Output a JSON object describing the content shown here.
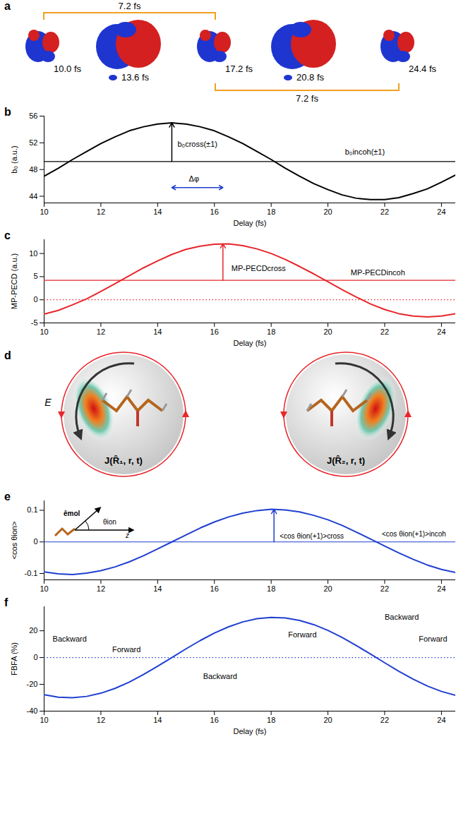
{
  "figure": {
    "a": {
      "panel_label": "a",
      "snapshots": [
        "10.0 fs",
        "13.6 fs",
        "17.2 fs",
        "20.8 fs",
        "24.4 fs"
      ],
      "brackets": [
        "7.2 fs",
        "7.2 fs"
      ]
    },
    "d": {
      "panel_label": "d",
      "field_label": "E",
      "current_labels": [
        "J(R̂₁, r, t)",
        "J(R̂₂, r, t)"
      ]
    }
  },
  "chart_data": [
    {
      "type": "line",
      "panel_label": "b",
      "x_label": "Delay (fs)",
      "y_label": "b₀ (a.u.)",
      "x": [
        10,
        10.5,
        11,
        11.5,
        12,
        12.5,
        13,
        13.5,
        14,
        14.5,
        15,
        15.5,
        16,
        16.5,
        17,
        17.5,
        18,
        18.5,
        19,
        19.5,
        20,
        20.5,
        21,
        21.5,
        22,
        22.5,
        23,
        23.5,
        24,
        24.5
      ],
      "series": [
        {
          "color": "#000000",
          "values": [
            47.0,
            48.2,
            49.5,
            50.7,
            51.9,
            52.9,
            53.8,
            54.4,
            54.8,
            55.0,
            54.8,
            54.4,
            53.8,
            52.9,
            51.9,
            50.7,
            49.5,
            48.2,
            47.0,
            45.9,
            45.0,
            44.2,
            43.7,
            43.5,
            43.5,
            43.8,
            44.4,
            45.1,
            46.1,
            47.2
          ]
        }
      ],
      "reference_lines": [
        {
          "y": 49.2,
          "color": "#000000",
          "line_style": "solid"
        }
      ],
      "arrows": [
        {
          "x1": 14.5,
          "y1": 49.2,
          "x2": 14.5,
          "y2": 55.0,
          "color": "#000000"
        }
      ],
      "double_arrows": [
        {
          "x1": 14.5,
          "x2": 16.3,
          "y": 45.3,
          "color": "#1f3fd0"
        }
      ],
      "annotations": [
        {
          "text": "b₀cross(±1)",
          "x": 14.7,
          "y": 51.8
        },
        {
          "text": "b₀incoh(±1)",
          "x": 20.6,
          "y": 50.6
        },
        {
          "text": "Δφ",
          "x": 15.1,
          "y": 46.6
        }
      ],
      "xlim": [
        10,
        24.5
      ],
      "xticks": [
        10,
        12,
        14,
        16,
        18,
        20,
        22,
        24
      ],
      "ylim": [
        43,
        56
      ],
      "yticks": [
        44,
        48,
        52,
        56
      ]
    },
    {
      "type": "line",
      "panel_label": "c",
      "x_label": "Delay (fs)",
      "y_label": "MP-PECD (a.u.)",
      "x": [
        10,
        10.5,
        11,
        11.5,
        12,
        12.5,
        13,
        13.5,
        14,
        14.5,
        15,
        15.5,
        16,
        16.5,
        17,
        17.5,
        18,
        18.5,
        19,
        19.5,
        20,
        20.5,
        21,
        21.5,
        22,
        22.5,
        23,
        23.5,
        24,
        24.5
      ],
      "series": [
        {
          "color": "#e8262b",
          "values": [
            -3.1,
            -2.3,
            -1.1,
            0.2,
            1.8,
            3.5,
            5.2,
            6.9,
            8.4,
            9.8,
            10.9,
            11.6,
            12.0,
            12.1,
            11.7,
            11.0,
            10.0,
            8.7,
            7.2,
            5.6,
            3.9,
            2.2,
            0.6,
            -0.9,
            -2.1,
            -3.0,
            -3.5,
            -3.7,
            -3.5,
            -3.0
          ]
        }
      ],
      "reference_lines": [
        {
          "y": 0,
          "color": "#e8262b",
          "line_style": "dotted"
        },
        {
          "y": 4.2,
          "color": "#e8262b",
          "line_style": "solid"
        }
      ],
      "arrows": [
        {
          "x1": 16.3,
          "y1": 4.2,
          "x2": 16.3,
          "y2": 12.1,
          "color": "#e8262b"
        }
      ],
      "annotations": [
        {
          "text": "MP-PECDcross",
          "x": 16.6,
          "y": 6.8
        },
        {
          "text": "MP-PECDincoh",
          "x": 20.8,
          "y": 5.8
        }
      ],
      "xlim": [
        10,
        24.5
      ],
      "xticks": [
        10,
        12,
        14,
        16,
        18,
        20,
        22,
        24
      ],
      "ylim": [
        -5,
        13
      ],
      "yticks": [
        -5,
        0,
        5,
        10
      ]
    },
    {
      "type": "line",
      "panel_label": "e",
      "y_label": "<cos θion>",
      "x": [
        10,
        10.5,
        11,
        11.5,
        12,
        12.5,
        13,
        13.5,
        14,
        14.5,
        15,
        15.5,
        16,
        16.5,
        17,
        17.5,
        18,
        18.5,
        19,
        19.5,
        20,
        20.5,
        21,
        21.5,
        22,
        22.5,
        23,
        23.5,
        24,
        24.5
      ],
      "series": [
        {
          "color": "#1f3fd0",
          "values": [
            -0.095,
            -0.101,
            -0.103,
            -0.099,
            -0.091,
            -0.079,
            -0.063,
            -0.044,
            -0.022,
            0,
            0.022,
            0.044,
            0.063,
            0.079,
            0.091,
            0.099,
            0.103,
            0.101,
            0.095,
            0.084,
            0.07,
            0.052,
            0.031,
            0.009,
            -0.013,
            -0.035,
            -0.055,
            -0.073,
            -0.087,
            -0.097
          ]
        }
      ],
      "reference_lines": [
        {
          "y": 0,
          "color": "#1f3fd0",
          "line_style": "solid"
        }
      ],
      "arrows": [
        {
          "x1": 18.1,
          "y1": 0,
          "x2": 18.1,
          "y2": 0.103,
          "color": "#1f3fd0"
        }
      ],
      "annotations": [
        {
          "text": "<cos θion(+1)>cross",
          "x": 18.3,
          "y": 0.018
        },
        {
          "text": "<cos θion(+1)>incoh",
          "x": 21.9,
          "y": 0.025
        }
      ],
      "inset_labels": [
        "êmol",
        "θion",
        "z"
      ],
      "xlim": [
        10,
        24.5
      ],
      "xticks": [
        10,
        12,
        14,
        16,
        18,
        20,
        22,
        24
      ],
      "ylim": [
        -0.12,
        0.13
      ],
      "yticks": [
        -0.1,
        0,
        0.1
      ]
    },
    {
      "type": "line",
      "panel_label": "f",
      "x_label": "Delay (fs)",
      "y_label": "FBFA (%)",
      "x": [
        10,
        10.5,
        11,
        11.5,
        12,
        12.5,
        13,
        13.5,
        14,
        14.5,
        15,
        15.5,
        16,
        16.5,
        17,
        17.5,
        18,
        18.5,
        19,
        19.5,
        20,
        20.5,
        21,
        21.5,
        22,
        22.5,
        23,
        23.5,
        24,
        24.5
      ],
      "series": [
        {
          "color": "#1f3fd0",
          "values": [
            -27.7,
            -29.6,
            -30.0,
            -29.0,
            -26.6,
            -23.0,
            -18.3,
            -12.7,
            -6.5,
            0,
            6.5,
            12.7,
            18.3,
            23.0,
            26.6,
            29.0,
            30.0,
            29.6,
            27.7,
            24.6,
            20.3,
            15.0,
            9.0,
            2.6,
            -3.9,
            -10.3,
            -16.1,
            -21.2,
            -25.3,
            -28.2
          ]
        }
      ],
      "reference_lines": [
        {
          "y": 0,
          "color": "#1f3fd0",
          "line_style": "dotted"
        }
      ],
      "annotations": [
        {
          "text": "Backward",
          "x": 10.3,
          "y": 14
        },
        {
          "text": "Forward",
          "x": 12.4,
          "y": 6
        },
        {
          "text": "Forward",
          "x": 18.6,
          "y": 17
        },
        {
          "text": "Backward",
          "x": 15.6,
          "y": -14
        },
        {
          "text": "Backward",
          "x": 22.0,
          "y": 30
        },
        {
          "text": "Forward",
          "x": 23.2,
          "y": 14
        }
      ],
      "xlim": [
        10,
        24.5
      ],
      "xticks": [
        10,
        12,
        14,
        16,
        18,
        20,
        22,
        24
      ],
      "ylim": [
        -40,
        38
      ],
      "yticks": [
        -40,
        -20,
        0,
        20
      ]
    }
  ]
}
